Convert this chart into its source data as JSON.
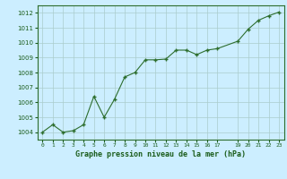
{
  "x": [
    0,
    1,
    2,
    3,
    4,
    5,
    6,
    7,
    8,
    9,
    10,
    11,
    12,
    13,
    14,
    15,
    16,
    17,
    19,
    20,
    21,
    22,
    23
  ],
  "y": [
    1004.0,
    1004.5,
    1004.0,
    1004.1,
    1004.5,
    1006.4,
    1005.0,
    1006.2,
    1007.7,
    1008.0,
    1008.85,
    1008.85,
    1008.9,
    1009.5,
    1009.5,
    1009.2,
    1009.5,
    1009.6,
    1010.1,
    1010.9,
    1011.5,
    1011.8,
    1012.05
  ],
  "line_color": "#2d6e2d",
  "marker": "+",
  "marker_color": "#2d6e2d",
  "bg_color": "#cceeff",
  "grid_color": "#aacccc",
  "title": "Graphe pression niveau de la mer (hPa)",
  "ylim": [
    1003.5,
    1012.5
  ],
  "xlim": [
    -0.5,
    23.5
  ],
  "yticks": [
    1004,
    1005,
    1006,
    1007,
    1008,
    1009,
    1010,
    1011,
    1012
  ],
  "xtick_positions": [
    0,
    1,
    2,
    3,
    4,
    5,
    6,
    7,
    8,
    9,
    10,
    11,
    12,
    13,
    14,
    15,
    16,
    17,
    19,
    20,
    21,
    22,
    23
  ],
  "xtick_labels": [
    "0",
    "1",
    "2",
    "3",
    "4",
    "5",
    "6",
    "7",
    "8",
    "9",
    "10",
    "11",
    "12",
    "13",
    "14",
    "15",
    "16",
    "17",
    "19",
    "20",
    "21",
    "22",
    "23"
  ],
  "title_color": "#1a5c1a",
  "tick_color": "#1a5c1a",
  "spine_color": "#2d6e2d"
}
